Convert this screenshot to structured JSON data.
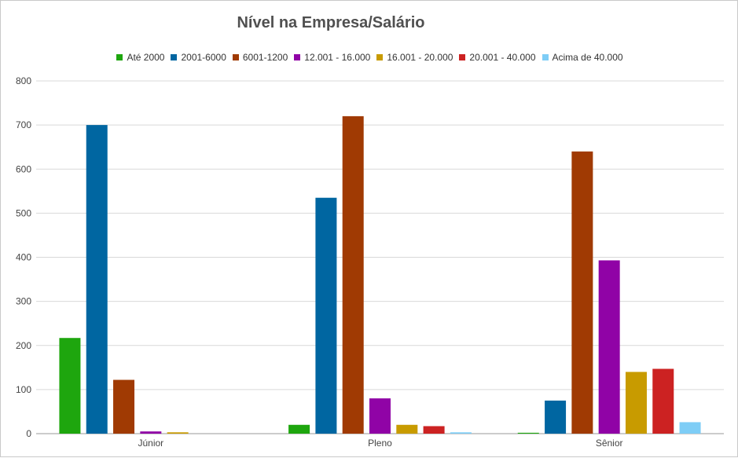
{
  "chart_data": {
    "type": "bar",
    "title": "Nível na Empresa/Salário",
    "xlabel": "",
    "ylabel": "",
    "categories": [
      "Júnior",
      "Pleno",
      "Sênior"
    ],
    "ylim": [
      0,
      800
    ],
    "yticks": [
      0,
      100,
      200,
      300,
      400,
      500,
      600,
      700,
      800
    ],
    "grid": true,
    "legend_position": "top",
    "series": [
      {
        "name": "Até 2000",
        "color": "#1ea60e",
        "values": [
          217,
          20,
          2
        ]
      },
      {
        "name": "2001-6000",
        "color": "#0066a1",
        "values": [
          700,
          535,
          75
        ]
      },
      {
        "name": "6001-1200",
        "color": "#a03a03",
        "values": [
          122,
          720,
          640
        ]
      },
      {
        "name": "12.001 - 16.000",
        "color": "#9003a6",
        "values": [
          5,
          80,
          393
        ]
      },
      {
        "name": "16.001 - 20.000",
        "color": "#c89b00",
        "values": [
          3,
          20,
          140
        ]
      },
      {
        "name": "20.001 - 40.000",
        "color": "#cc2222",
        "values": [
          0,
          17,
          147
        ]
      },
      {
        "name": "Acima de 40.000",
        "color": "#7ecdf6",
        "values": [
          0,
          3,
          26
        ]
      }
    ]
  }
}
